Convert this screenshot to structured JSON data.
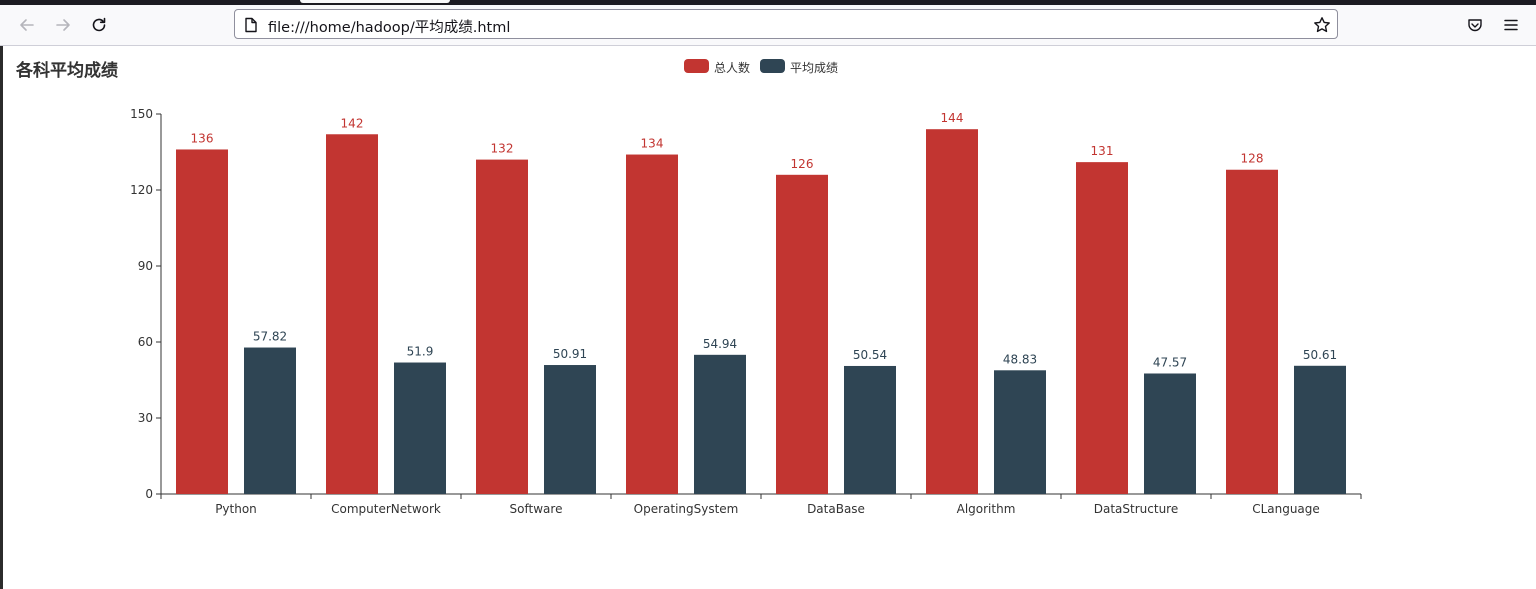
{
  "browser": {
    "url": "file:///home/hadoop/平均成绩.html",
    "icons": {
      "back": "back-arrow-icon",
      "forward": "forward-arrow-icon",
      "reload": "reload-icon",
      "page": "page-icon",
      "bookmark": "star-icon",
      "pocket": "pocket-icon",
      "menu": "hamburger-menu-icon"
    }
  },
  "chart_data": {
    "type": "bar",
    "title": "各科平均成绩",
    "categories": [
      "Python",
      "ComputerNetwork",
      "Software",
      "OperatingSystem",
      "DataBase",
      "Algorithm",
      "DataStructure",
      "CLanguage"
    ],
    "series": [
      {
        "name": "总人数",
        "color": "#c23531",
        "values": [
          136,
          142,
          132,
          134,
          126,
          144,
          131,
          128
        ]
      },
      {
        "name": "平均成绩",
        "color": "#2f4554",
        "values": [
          57.82,
          51.9,
          50.91,
          54.94,
          50.54,
          48.83,
          47.57,
          50.61
        ]
      }
    ],
    "ylim": [
      0,
      150
    ],
    "yticks": [
      0,
      30,
      60,
      90,
      120,
      150
    ],
    "legend": "top-center",
    "grid": false,
    "data_labels": true
  }
}
